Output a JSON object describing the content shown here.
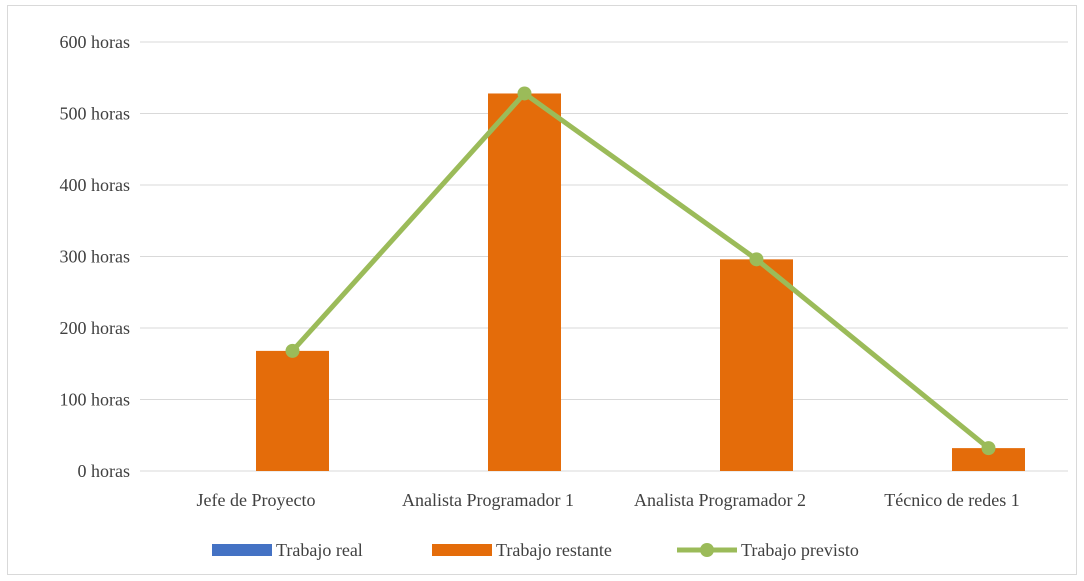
{
  "chart_data": {
    "type": "bar",
    "categories": [
      "Jefe de Proyecto",
      "Analista Programador 1",
      "Analista Programador 2",
      "Técnico de redes 1"
    ],
    "y_tick_labels": [
      "0 horas",
      "100 horas",
      "200 horas",
      "300 horas",
      "400 horas",
      "500 horas",
      "600 horas"
    ],
    "ylim": [
      0,
      600
    ],
    "grid": true,
    "legend_position": "bottom",
    "series": [
      {
        "name": "Trabajo real",
        "kind": "bar",
        "color": "#4472c4",
        "values": [
          0,
          0,
          0,
          0
        ]
      },
      {
        "name": "Trabajo restante",
        "kind": "bar",
        "color": "#e46c0a",
        "values": [
          168,
          528,
          296,
          32
        ]
      },
      {
        "name": "Trabajo previsto",
        "kind": "line",
        "color": "#9bbb59",
        "values": [
          168,
          528,
          296,
          32
        ]
      }
    ]
  }
}
